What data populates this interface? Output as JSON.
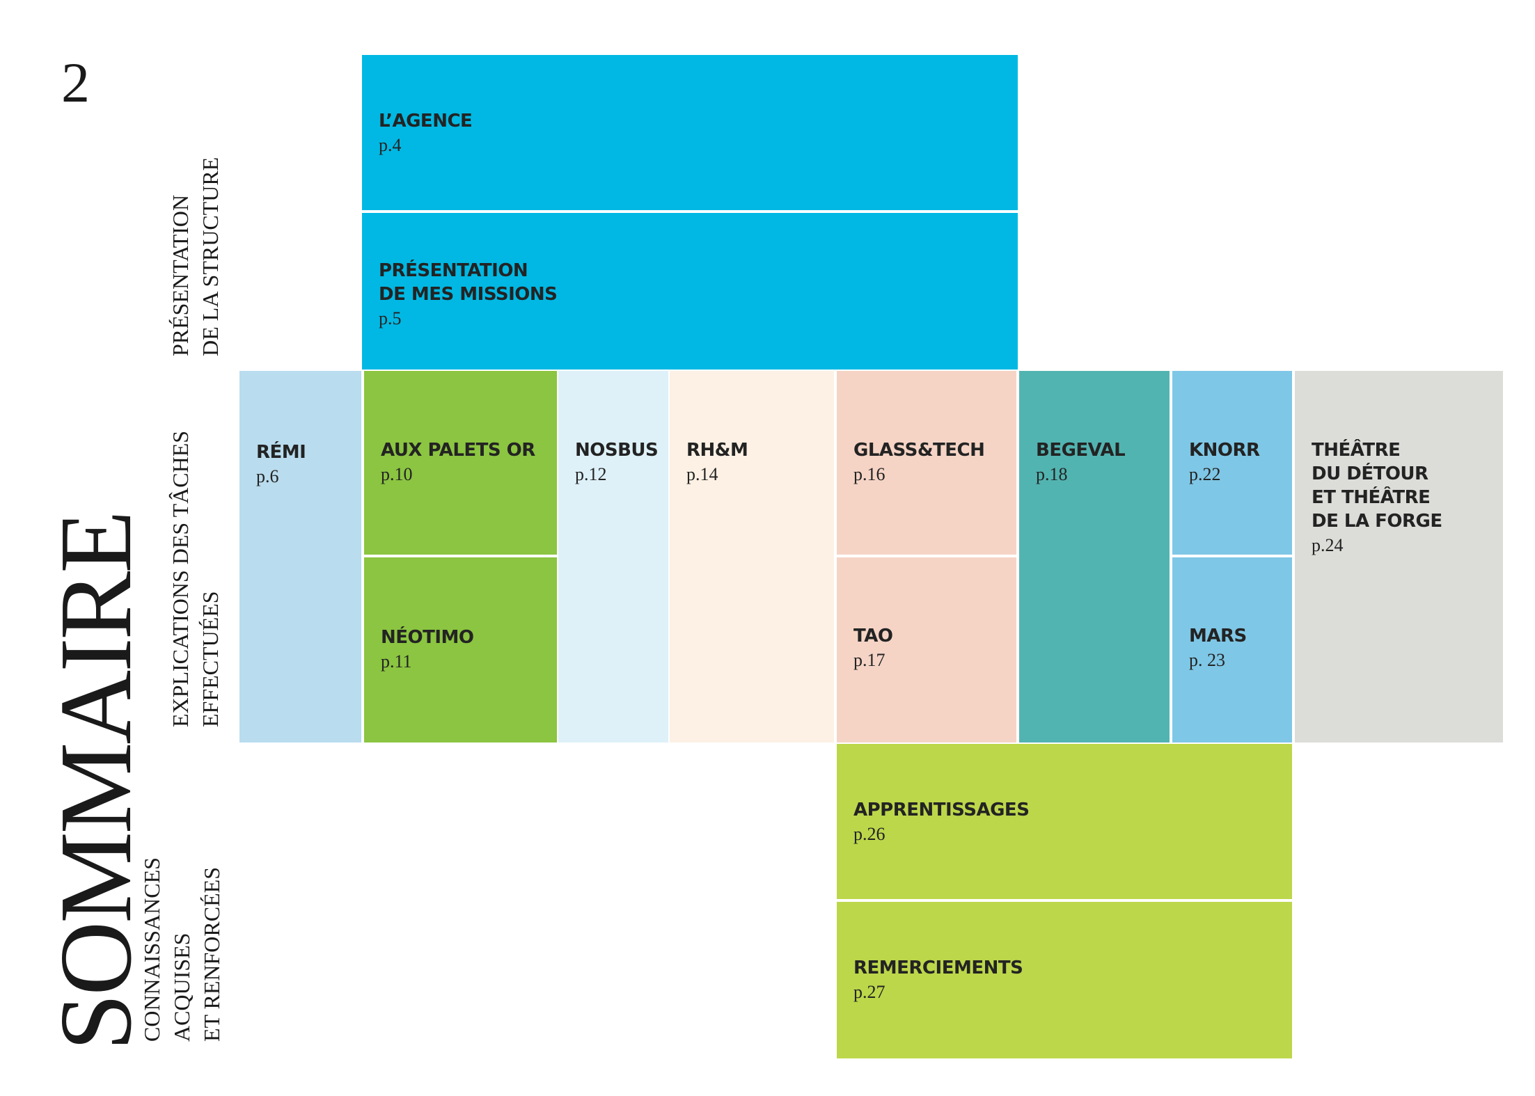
{
  "page": {
    "number": "2",
    "title": "SOMMAIRE"
  },
  "sections": {
    "structure": {
      "line1": "PRÉSENTATION",
      "line2": "DE LA STRUCTURE"
    },
    "taches": {
      "line1": "EXPLICATIONS DES TÂCHES",
      "line2": "EFFECTUÉES"
    },
    "connaissances": {
      "line1": "CONNAISSANCES",
      "line2": "ACQUISES",
      "line3": "ET RENFORCÉES"
    }
  },
  "entries": {
    "agence": {
      "name": "L’AGENCE",
      "page": "p.4",
      "color": "#00b8e3"
    },
    "missions": {
      "name_line1": "PRÉSENTATION",
      "name_line2": "DE MES MISSIONS",
      "page": "p.5",
      "color": "#00b8e3"
    },
    "remi": {
      "name": "RÉMI",
      "page": "p.6",
      "color": "#b9dcee"
    },
    "aux_palets_or": {
      "name": "AUX PALETS OR",
      "page": "p.10",
      "color": "#8bc541"
    },
    "neotimo": {
      "name": "NÉOTIMO",
      "page": "p.11",
      "color": "#8bc541"
    },
    "nosbus": {
      "name": "NOSBUS",
      "page": "p.12",
      "color": "#def1f8"
    },
    "rhm": {
      "name": "RH&M",
      "page": "p.14",
      "color": "#fcf1e4"
    },
    "glasstech": {
      "name": "GLASS&TECH",
      "page": "p.16",
      "color": "#f5d4c6"
    },
    "tao": {
      "name": "TAO",
      "page": "p.17",
      "color": "#f5d4c6"
    },
    "begeval": {
      "name": "BEGEVAL",
      "page": "p.18",
      "color": "#52b4b1"
    },
    "knorr": {
      "name": "KNORR",
      "page": "p.22",
      "color": "#7fc7e6"
    },
    "mars": {
      "name": "MARS",
      "page": "p. 23",
      "color": "#7fc7e6"
    },
    "theatre": {
      "name_line1": "THÉÂTRE",
      "name_line2": "DU DÉTOUR",
      "name_line3": "ET THÉÂTRE",
      "name_line4": "DE LA FORGE",
      "page": "p.24",
      "color": "#dcdcd9"
    },
    "apprentissages": {
      "name": "APPRENTISSAGES",
      "page": "p.26",
      "color": "#bcd74a"
    },
    "remerciements": {
      "name": "REMERCIEMENTS",
      "page": "p.27",
      "color": "#bcd74a"
    }
  }
}
